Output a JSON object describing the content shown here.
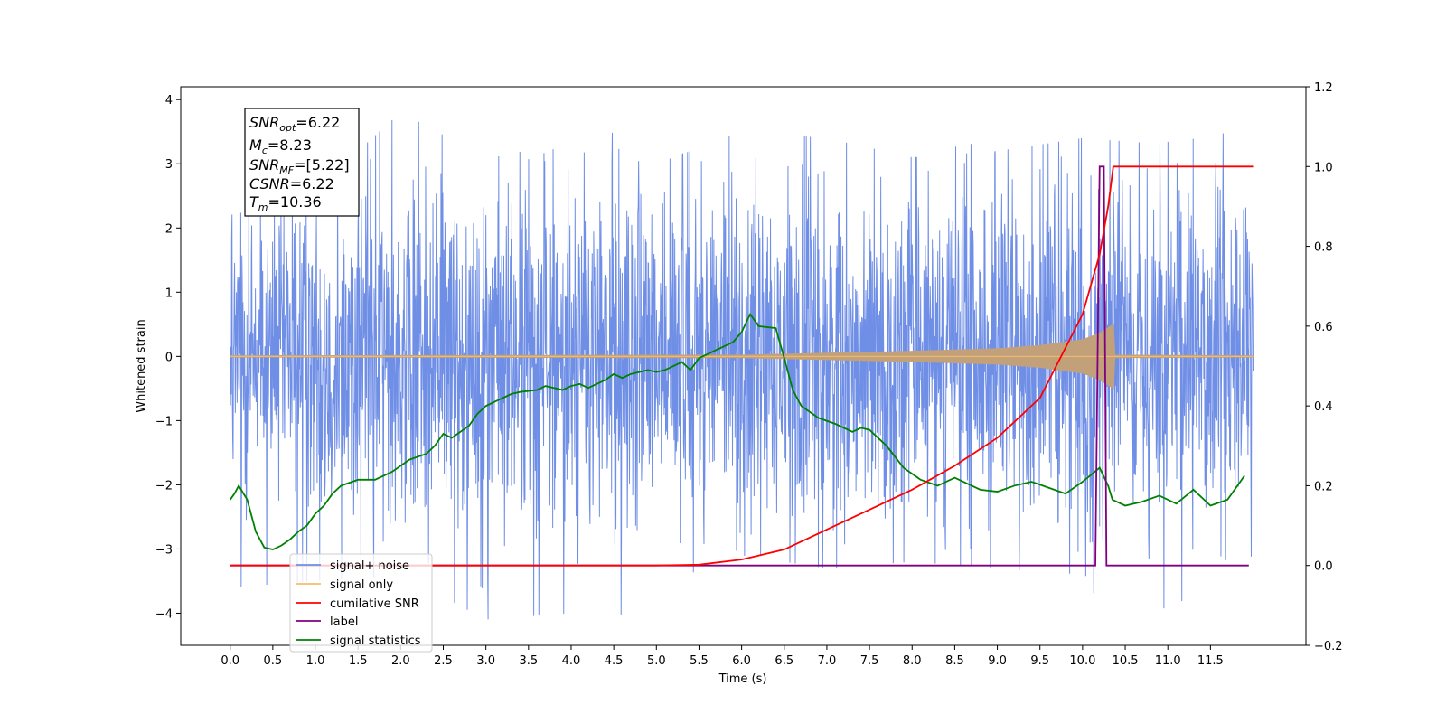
{
  "chart_data": {
    "type": "line",
    "xlabel": "Time (s)",
    "ylabel": "Whitened strain",
    "xlim": [
      -0.58,
      12.62
    ],
    "ylim": [
      -4.5,
      4.2
    ],
    "y2lim": [
      -0.2,
      1.2
    ],
    "x_ticks": [
      "0.0",
      "0.5",
      "1.0",
      "1.5",
      "2.0",
      "2.5",
      "3.0",
      "3.5",
      "4.0",
      "4.5",
      "5.0",
      "5.5",
      "6.0",
      "6.5",
      "7.0",
      "7.5",
      "8.0",
      "8.5",
      "9.0",
      "9.5",
      "10.0",
      "10.5",
      "11.0",
      "11.5"
    ],
    "y_ticks": [
      "4",
      "3",
      "2",
      "1",
      "0",
      "−1",
      "−2",
      "−3",
      "−4"
    ],
    "y2_ticks": [
      "1.2",
      "1.0",
      "0.8",
      "0.6",
      "0.4",
      "0.2",
      "0.0",
      "−0.2"
    ],
    "info_box": {
      "snr_opt": {
        "name": "SNR",
        "sub": "opt",
        "value": "=6.22"
      },
      "mc": {
        "name": "M",
        "sub": "c",
        "value": "=8.23"
      },
      "snr_mf": {
        "name": "SNR",
        "sub": "MF",
        "value": "=[5.22]"
      },
      "csnr": {
        "name": "CSNR",
        "sub": "",
        "value": "=6.22"
      },
      "tm": {
        "name": "T",
        "sub": "m",
        "value": "=10.36"
      }
    },
    "legend": {
      "placement": "lower-left",
      "entries": [
        {
          "label": "signal+ noise",
          "color": "#6f8ee6"
        },
        {
          "label": "signal only",
          "color": "#f5be6a"
        },
        {
          "label": "cumilative SNR",
          "color": "#ff0000"
        },
        {
          "label": "label",
          "color": "#800080"
        },
        {
          "label": "signal statistics",
          "color": "#008000"
        }
      ]
    },
    "series": [
      {
        "name": "signal+ noise",
        "axis": "left",
        "color": "#6f8ee6",
        "duration_s": 12.0,
        "envelope_x": [
          0,
          1,
          2,
          3,
          4,
          5,
          6,
          7,
          8,
          9,
          10,
          11,
          12
        ],
        "envelope_upper": [
          2.2,
          2.6,
          3.8,
          3.1,
          3.2,
          3.0,
          3.5,
          3.4,
          3.1,
          3.2,
          3.4,
          3.3,
          3.6
        ],
        "envelope_lower": [
          -3.6,
          -3.5,
          -3.4,
          -4.1,
          -4.0,
          -4.05,
          -3.1,
          -3.3,
          -3.2,
          -3.3,
          -3.4,
          -3.95,
          -3.1
        ]
      },
      {
        "name": "signal only",
        "axis": "left",
        "color": "#f5be6a",
        "x": [
          0.0,
          6.0,
          7.0,
          8.0,
          9.0,
          9.5,
          10.0,
          10.2,
          10.36,
          10.37,
          12.0
        ],
        "amplitude": [
          0.01,
          0.02,
          0.05,
          0.08,
          0.12,
          0.17,
          0.26,
          0.36,
          0.5,
          0.02,
          0.01
        ]
      },
      {
        "name": "cumilative SNR",
        "axis": "right",
        "color": "#ff0000",
        "x": [
          0.0,
          5.0,
          5.5,
          6.0,
          6.5,
          7.0,
          7.5,
          8.0,
          8.5,
          9.0,
          9.5,
          10.0,
          10.2,
          10.3,
          10.36,
          12.0
        ],
        "y": [
          0.0,
          0.0,
          0.002,
          0.015,
          0.04,
          0.09,
          0.14,
          0.19,
          0.25,
          0.32,
          0.42,
          0.63,
          0.78,
          0.9,
          1.0,
          1.0
        ]
      },
      {
        "name": "label",
        "axis": "right",
        "color": "#800080",
        "x": [
          0.0,
          10.15,
          10.2,
          10.25,
          10.28,
          10.38,
          11.95
        ],
        "y": [
          0.0,
          0.0,
          1.0,
          1.0,
          0.0,
          0.0,
          0.0
        ]
      },
      {
        "name": "signal statistics",
        "axis": "right",
        "color": "#008000",
        "x": [
          0.0,
          0.05,
          0.1,
          0.2,
          0.3,
          0.4,
          0.5,
          0.6,
          0.7,
          0.8,
          0.9,
          1.0,
          1.1,
          1.2,
          1.3,
          1.5,
          1.7,
          1.9,
          2.1,
          2.3,
          2.4,
          2.5,
          2.6,
          2.8,
          2.9,
          3.0,
          3.1,
          3.2,
          3.3,
          3.4,
          3.6,
          3.7,
          3.9,
          4.0,
          4.1,
          4.2,
          4.4,
          4.5,
          4.6,
          4.7,
          4.9,
          5.0,
          5.1,
          5.3,
          5.4,
          5.5,
          5.6,
          5.7,
          5.8,
          5.9,
          6.0,
          6.1,
          6.2,
          6.4,
          6.5,
          6.6,
          6.7,
          6.9,
          7.1,
          7.3,
          7.4,
          7.5,
          7.7,
          7.9,
          8.1,
          8.3,
          8.5,
          8.7,
          8.8,
          9.0,
          9.2,
          9.4,
          9.6,
          9.8,
          10.0,
          10.2,
          10.3,
          10.35,
          10.5,
          10.7,
          10.9,
          11.1,
          11.3,
          11.5,
          11.7,
          11.9
        ],
        "y": [
          0.165,
          0.18,
          0.2,
          0.165,
          0.085,
          0.045,
          0.04,
          0.05,
          0.065,
          0.085,
          0.1,
          0.13,
          0.15,
          0.18,
          0.2,
          0.215,
          0.215,
          0.235,
          0.265,
          0.28,
          0.3,
          0.33,
          0.32,
          0.35,
          0.38,
          0.4,
          0.41,
          0.42,
          0.43,
          0.435,
          0.44,
          0.45,
          0.44,
          0.45,
          0.455,
          0.445,
          0.465,
          0.48,
          0.47,
          0.48,
          0.49,
          0.485,
          0.49,
          0.51,
          0.49,
          0.52,
          0.53,
          0.54,
          0.55,
          0.56,
          0.585,
          0.63,
          0.6,
          0.595,
          0.52,
          0.44,
          0.4,
          0.37,
          0.355,
          0.335,
          0.345,
          0.34,
          0.3,
          0.245,
          0.215,
          0.2,
          0.22,
          0.2,
          0.19,
          0.185,
          0.2,
          0.21,
          0.195,
          0.18,
          0.21,
          0.245,
          0.2,
          0.165,
          0.15,
          0.16,
          0.175,
          0.155,
          0.19,
          0.15,
          0.165,
          0.225
        ]
      }
    ]
  }
}
